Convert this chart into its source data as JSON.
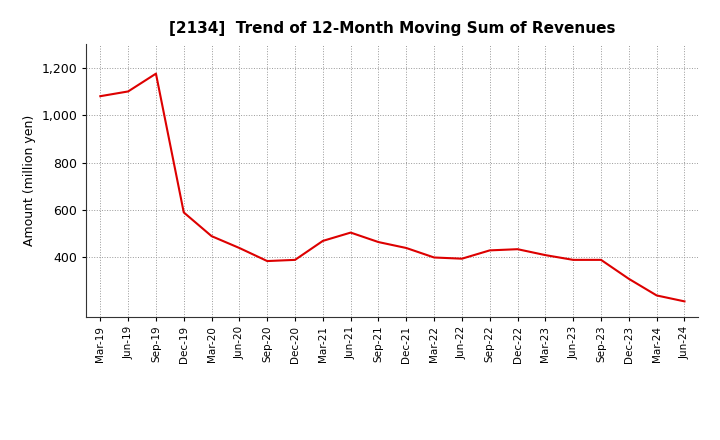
{
  "title": "[2134]  Trend of 12-Month Moving Sum of Revenues",
  "ylabel": "Amount (million yen)",
  "line_color": "#dd0000",
  "background_color": "#ffffff",
  "grid_color": "#999999",
  "ylim": [
    150,
    1300
  ],
  "yticks": [
    400,
    600,
    800,
    1000,
    1200
  ],
  "ytick_labels": [
    "400",
    "600",
    "800",
    "1,000",
    "1,200"
  ],
  "x_labels": [
    "Mar-19",
    "Jun-19",
    "Sep-19",
    "Dec-19",
    "Mar-20",
    "Jun-20",
    "Sep-20",
    "Dec-20",
    "Mar-21",
    "Jun-21",
    "Sep-21",
    "Dec-21",
    "Mar-22",
    "Jun-22",
    "Sep-22",
    "Dec-22",
    "Mar-23",
    "Jun-23",
    "Sep-23",
    "Dec-23",
    "Mar-24",
    "Jun-24"
  ],
  "values": [
    1080,
    1100,
    1175,
    590,
    490,
    440,
    385,
    390,
    470,
    505,
    465,
    440,
    400,
    395,
    430,
    435,
    410,
    390,
    390,
    310,
    240,
    215
  ]
}
